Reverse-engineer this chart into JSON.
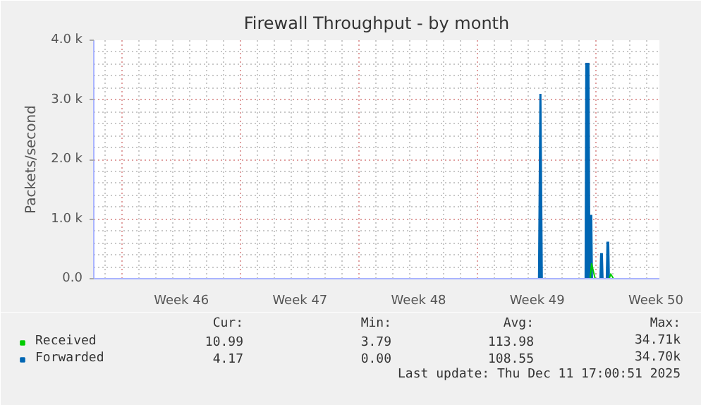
{
  "chart_data": {
    "type": "area",
    "title": "Firewall Throughput - by month",
    "ylabel": "Packets/second",
    "xlim": [
      "2025-11-08T08:00",
      "2025-12-11T17:00"
    ],
    "xticks": [
      {
        "value": "2025-11-10",
        "label": null
      },
      {
        "value": "2025-11-13T12:00",
        "label": "Week 46"
      },
      {
        "value": "2025-11-17",
        "label": null
      },
      {
        "value": "2025-11-20T12:00",
        "label": "Week 47"
      },
      {
        "value": "2025-11-24",
        "label": null
      },
      {
        "value": "2025-11-27T12:00",
        "label": "Week 48"
      },
      {
        "value": "2025-12-01",
        "label": null
      },
      {
        "value": "2025-12-04T12:00",
        "label": "Week 49"
      },
      {
        "value": "2025-12-08",
        "label": null
      },
      {
        "value": "2025-12-11T12:00",
        "label": "Week 50"
      }
    ],
    "ylim": [
      0,
      4000
    ],
    "yticks": [
      {
        "value": 0,
        "label": "0.0"
      },
      {
        "value": 1000,
        "label": "1.0 k"
      },
      {
        "value": 2000,
        "label": "2.0 k"
      },
      {
        "value": 3000,
        "label": "3.0 k"
      },
      {
        "value": 4000,
        "label": "4.0 k"
      }
    ],
    "grid": true,
    "legend": "bottom",
    "series": [
      {
        "name": "Received",
        "color": "#00cc00",
        "type": "line",
        "x": [
          "2025-12-07T15:00",
          "2025-12-07T17:00",
          "2025-12-07T22:00",
          "2025-12-08T12:00",
          "2025-12-08T18:00",
          "2025-12-08T20:00",
          "2025-12-09T00:00"
        ],
        "values": [
          0,
          250,
          0,
          null,
          0,
          80,
          0
        ]
      },
      {
        "name": "Forwarded",
        "color": "#0066b3",
        "x": [
          "2025-11-08T08:00",
          "2025-12-04T13:00",
          "2025-12-04T15:00",
          "2025-12-04T18:00",
          "2025-12-04T20:00",
          "2025-12-07T07:00",
          "2025-12-07T08:00",
          "2025-12-07T14:00",
          "2025-12-07T15:00",
          "2025-12-07T18:00",
          "2025-12-07T19:00",
          "2025-12-08T04:00",
          "2025-12-08T05:00",
          "2025-12-08T09:00",
          "2025-12-08T10:00",
          "2025-12-08T13:00",
          "2025-12-08T14:00",
          "2025-12-08T18:00",
          "2025-12-08T19:00",
          "2025-12-11T17:00"
        ],
        "values": [
          0,
          0,
          3100,
          3100,
          0,
          0,
          3620,
          3620,
          1070,
          1070,
          0,
          0,
          430,
          430,
          0,
          0,
          620,
          620,
          0,
          0
        ]
      }
    ],
    "annotations": [
      "Cur:",
      "Min:",
      "Avg:",
      "Max:",
      "10.99",
      "3.79",
      "113.98",
      "34.71k",
      "4.17",
      "0.00",
      "108.55",
      "34.70k",
      "Last update: Thu Dec 11 17:00:51 2025"
    ]
  }
}
